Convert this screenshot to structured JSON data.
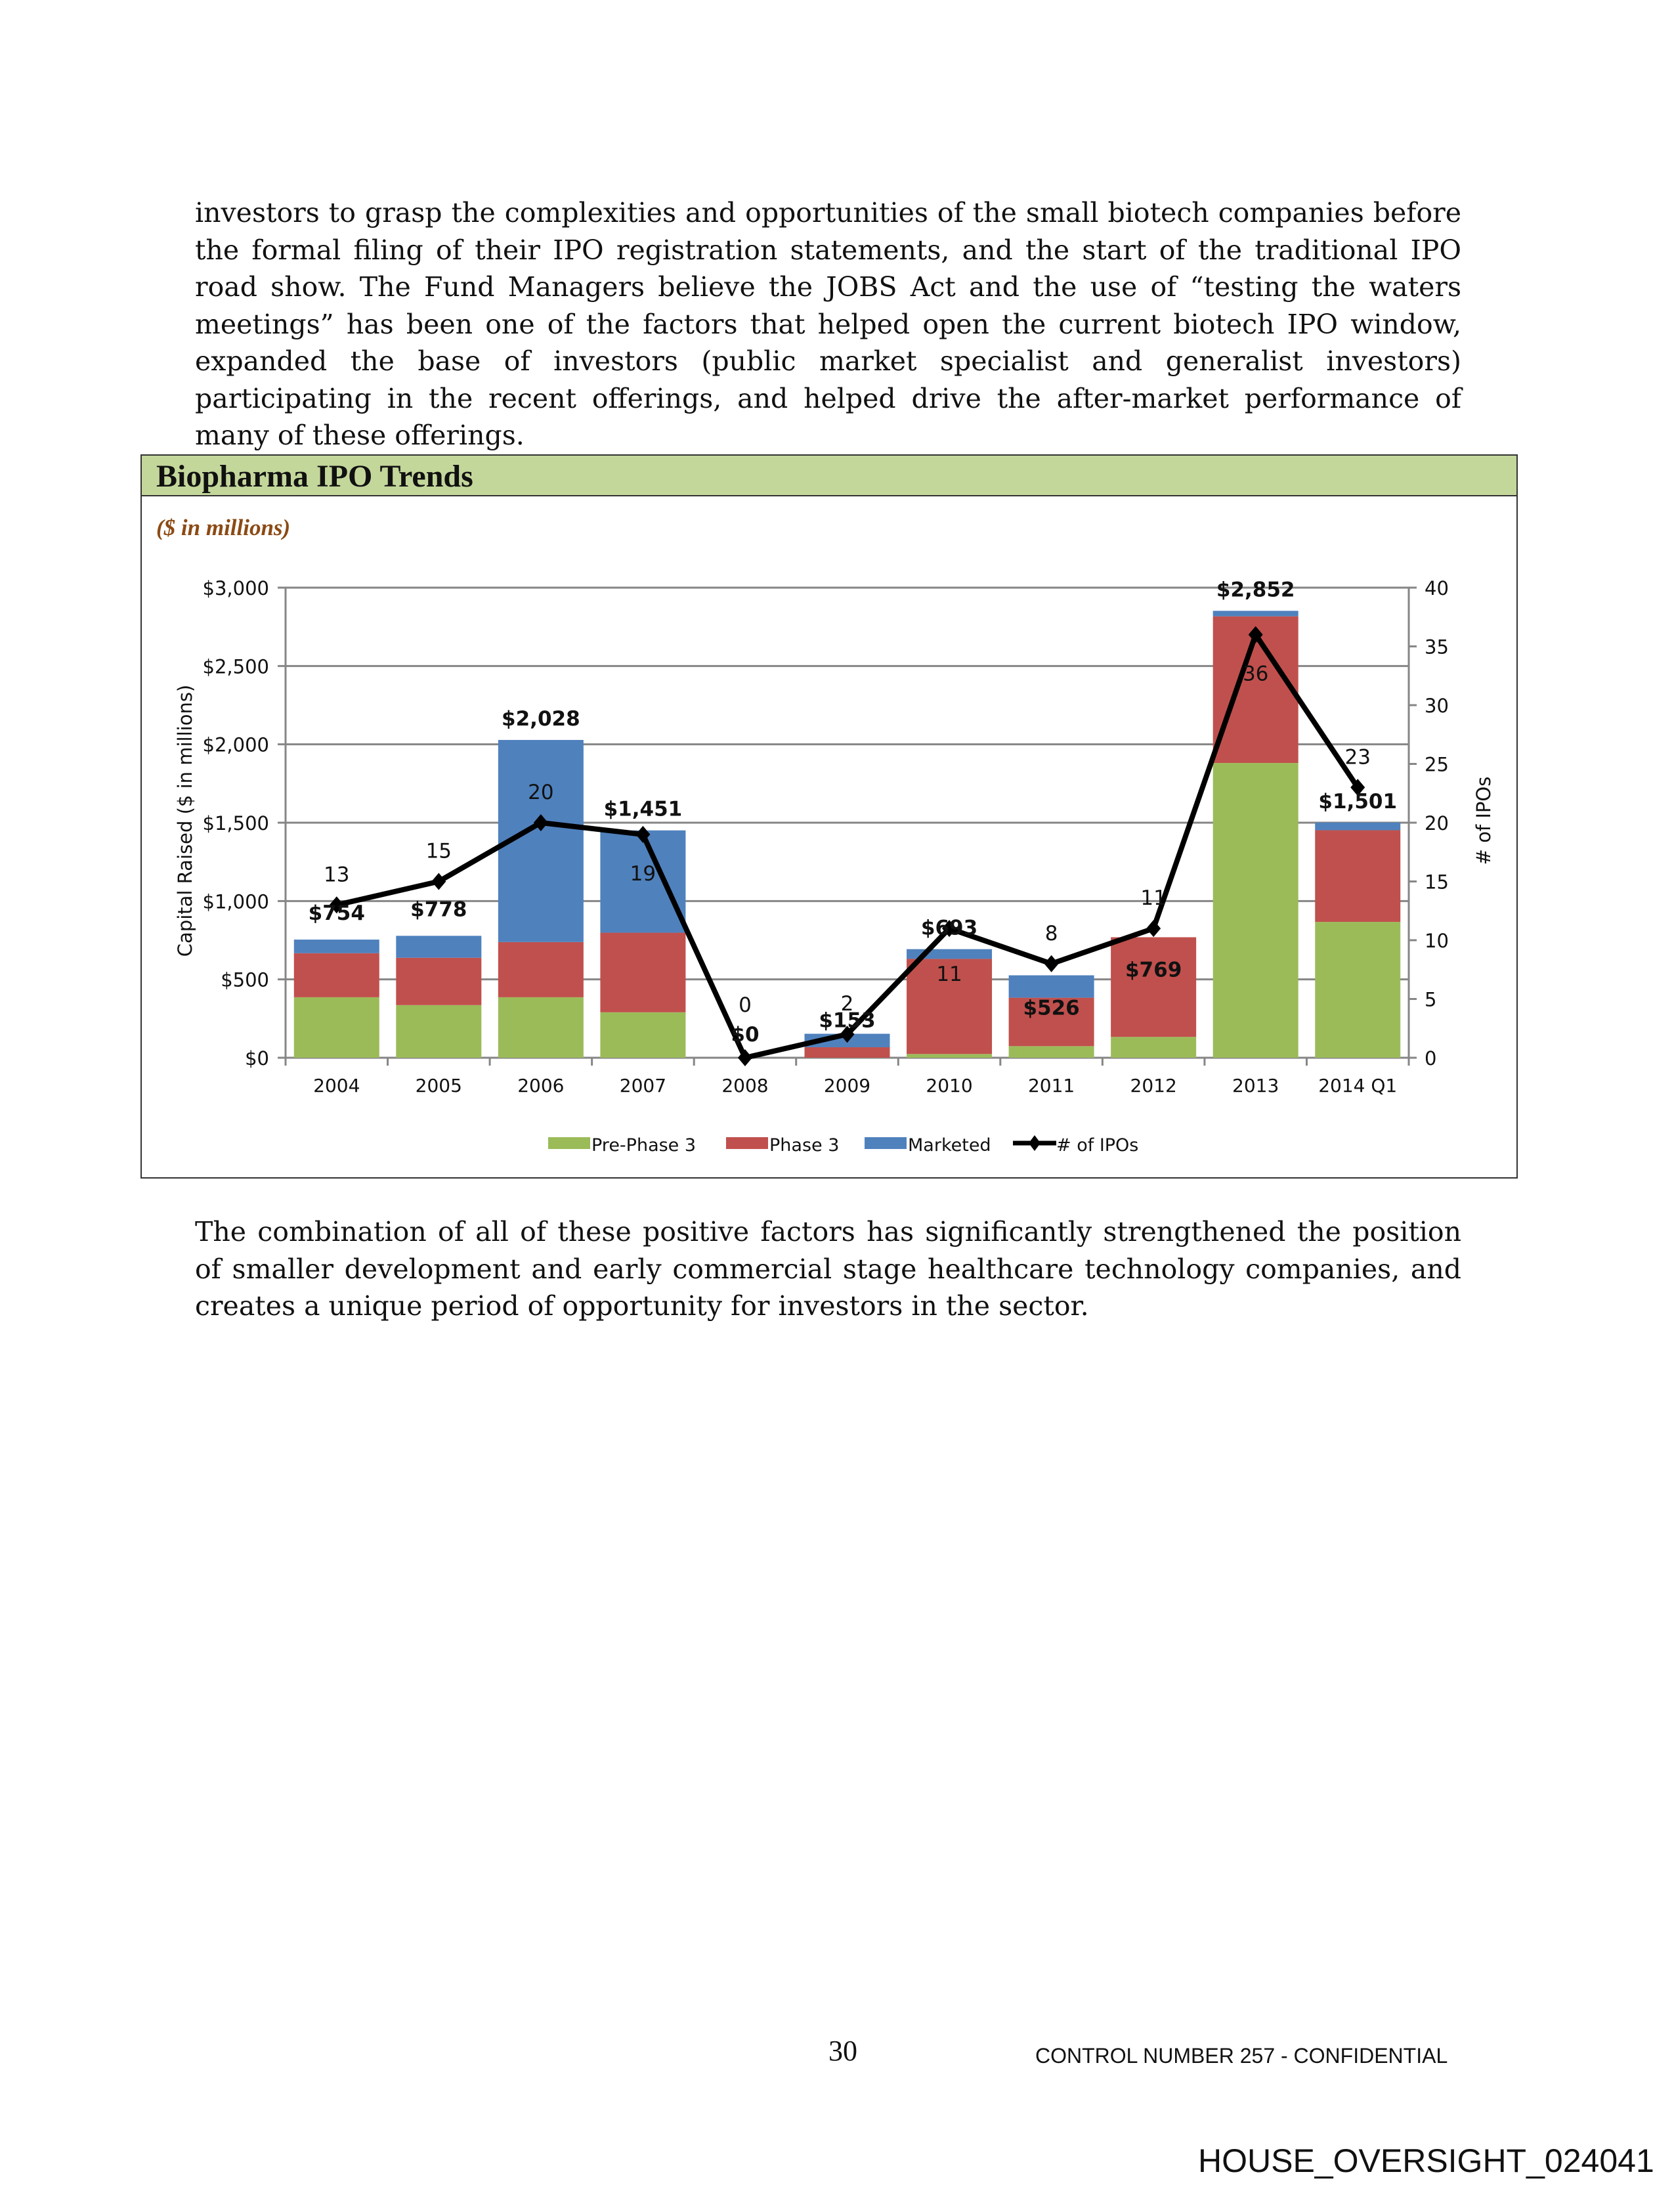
{
  "body": {
    "paragraph_1": "investors to grasp the complexities and opportunities of the small biotech companies before the formal filing of their IPO registration statements, and the start of the traditional IPO road show. The Fund Managers believe the JOBS Act and the use of “testing the waters meetings” has been one of the factors that helped open the current biotech IPO window, expanded the base of investors (public market specialist and generalist investors) participating in the recent offerings, and helped drive the after-market performance of many of these offerings.",
    "paragraph_2": "The combination of all of these positive factors has significantly strengthened the position of smaller development and early commercial stage healthcare technology companies, and creates a unique period of opportunity for investors in the sector."
  },
  "exhibit": {
    "title": "Biopharma IPO Trends",
    "subtitle": "($ in millions)",
    "header_color": "#c4d79b"
  },
  "chart_data": {
    "type": "bar",
    "stacked": true,
    "categories": [
      "2004",
      "2005",
      "2006",
      "2007",
      "2008",
      "2009",
      "2010",
      "2011",
      "2012",
      "2013",
      "2014 Q1"
    ],
    "series": [
      {
        "name": "Pre-Phase 3",
        "color": "#9bbb59",
        "values": [
          386,
          336,
          386,
          290,
          0,
          0,
          24,
          74,
          133,
          1881,
          867
        ]
      },
      {
        "name": "Phase 3",
        "color": "#c0504d",
        "values": [
          281,
          302,
          352,
          508,
          0,
          67,
          607,
          309,
          636,
          936,
          585
        ]
      },
      {
        "name": "Marketed",
        "color": "#4f81bd",
        "values": [
          87,
          140,
          1290,
          653,
          0,
          86,
          62,
          143,
          0,
          35,
          49
        ]
      }
    ],
    "totals": [
      754,
      778,
      2028,
      1451,
      0,
      153,
      693,
      526,
      769,
      2852,
      1501
    ],
    "total_labels": [
      "$754",
      "$778",
      "$2,028",
      "$1,451",
      "$0",
      "$153",
      "$693",
      "$526",
      "$769",
      "$2,852",
      "$1,501"
    ],
    "line_series": {
      "name": "# of IPOs",
      "color": "#000000",
      "axis": "right",
      "values": [
        13,
        15,
        20,
        19,
        0,
        2,
        11,
        8,
        11,
        36,
        23
      ]
    },
    "ylabel": "Capital Raised ($ in millions)",
    "ylabel_right": "# of IPOs",
    "ylim": [
      0,
      3000
    ],
    "ylim_right": [
      0,
      40
    ],
    "y_ticks": [
      "$0",
      "$500",
      "$1,000",
      "$1,500",
      "$2,000",
      "$2,500",
      "$3,000"
    ],
    "y_tick_values": [
      0,
      500,
      1000,
      1500,
      2000,
      2500,
      3000
    ],
    "y_right_ticks": [
      "0",
      "5",
      "10",
      "15",
      "20",
      "25",
      "30",
      "35",
      "40"
    ],
    "grid": true,
    "legend_position": "bottom"
  },
  "footer": {
    "page_number": "30",
    "control": "CONTROL NUMBER 257 - CONFIDENTIAL",
    "bates": "HOUSE_OVERSIGHT_024041"
  }
}
